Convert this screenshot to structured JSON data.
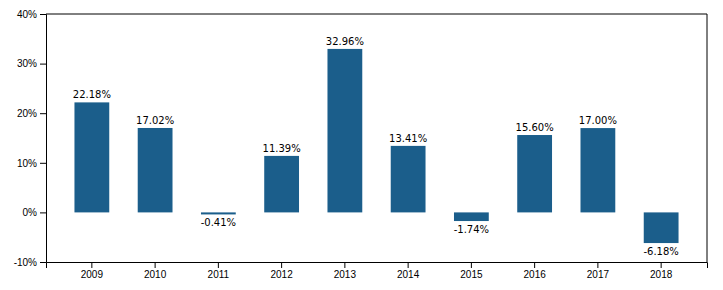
{
  "chart_data": {
    "type": "bar",
    "categories": [
      "2009",
      "2010",
      "2011",
      "2012",
      "2013",
      "2014",
      "2015",
      "2016",
      "2017",
      "2018"
    ],
    "values": [
      22.18,
      17.02,
      -0.41,
      11.39,
      32.96,
      13.41,
      -1.74,
      15.6,
      17.0,
      -6.18
    ],
    "value_labels": [
      "22.18%",
      "17.02%",
      "-0.41%",
      "11.39%",
      "32.96%",
      "13.41%",
      "-1.74%",
      "15.60%",
      "17.00%",
      "-6.18%"
    ],
    "color": "#1b5e8b",
    "ylim": [
      -10,
      40
    ],
    "yticks": [
      {
        "value": -10,
        "label": "-10%"
      },
      {
        "value": 0,
        "label": "0%"
      },
      {
        "value": 10,
        "label": "10%"
      },
      {
        "value": 20,
        "label": "20%"
      },
      {
        "value": 30,
        "label": "30%"
      },
      {
        "value": 40,
        "label": "40%"
      }
    ],
    "data_labels": true,
    "grid": false
  }
}
